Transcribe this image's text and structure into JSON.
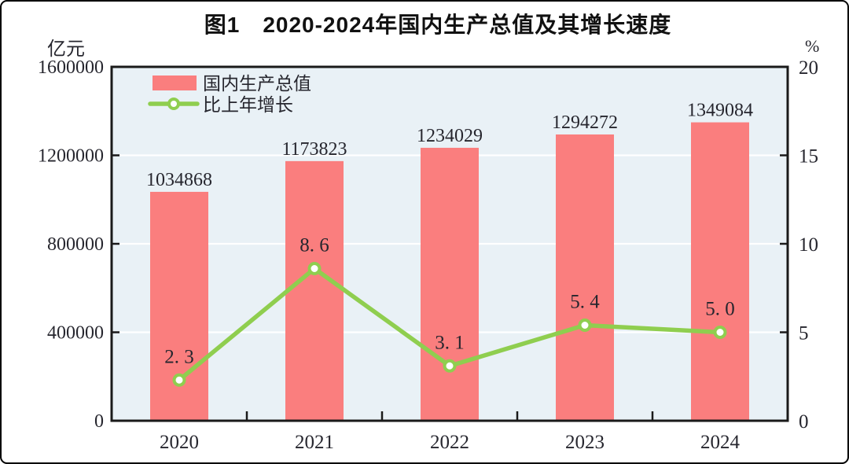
{
  "window": {
    "background": "#ffffff",
    "frame_color": "#000000"
  },
  "header": {
    "title": "图1　2020-2024年国内生产总值及其增长速度"
  },
  "axes": {
    "left_unit": "亿元",
    "right_unit": "%"
  },
  "chart_data": {
    "type": "bar",
    "combo": "bar+line",
    "title": "图1 2020-2024年国内生产总值及其增长速度",
    "categories": [
      "2020",
      "2021",
      "2022",
      "2023",
      "2024"
    ],
    "series": [
      {
        "name": "国内生产总值",
        "type": "bar",
        "axis": "left",
        "unit": "亿元",
        "values": [
          1034868,
          1173823,
          1234029,
          1294272,
          1349084
        ],
        "labels": [
          "1034868",
          "1173823",
          "1234029",
          "1294272",
          "1349084"
        ],
        "color": "#FA7E7E"
      },
      {
        "name": "比上年增长",
        "type": "line",
        "axis": "right",
        "unit": "%",
        "values": [
          2.3,
          8.6,
          3.1,
          5.4,
          5.0
        ],
        "labels": [
          "2. 3",
          "8. 6",
          "3. 1",
          "5. 4",
          "5. 0"
        ],
        "color": "#8FCE4F",
        "marker": {
          "shape": "circle",
          "fill": "#FFFFFF",
          "stroke": "#8FCE4F"
        }
      }
    ],
    "left_axis": {
      "unit": "亿元",
      "ticks": [
        "0",
        "400000",
        "800000",
        "1200000",
        "1600000"
      ],
      "range": [
        0,
        1600000
      ]
    },
    "right_axis": {
      "unit": "%",
      "ticks": [
        "0",
        "5",
        "10",
        "15",
        "20"
      ],
      "range": [
        0,
        20
      ]
    },
    "plot": {
      "bg": "#E9F1F6",
      "grid_color": "#FFFFFF",
      "frame_color": "#1A1A1A",
      "grid": true
    },
    "legend": {
      "position": "top-left-inside",
      "entries": [
        "国内生产总值",
        "比上年增长"
      ]
    },
    "text_color": "#26262E"
  }
}
